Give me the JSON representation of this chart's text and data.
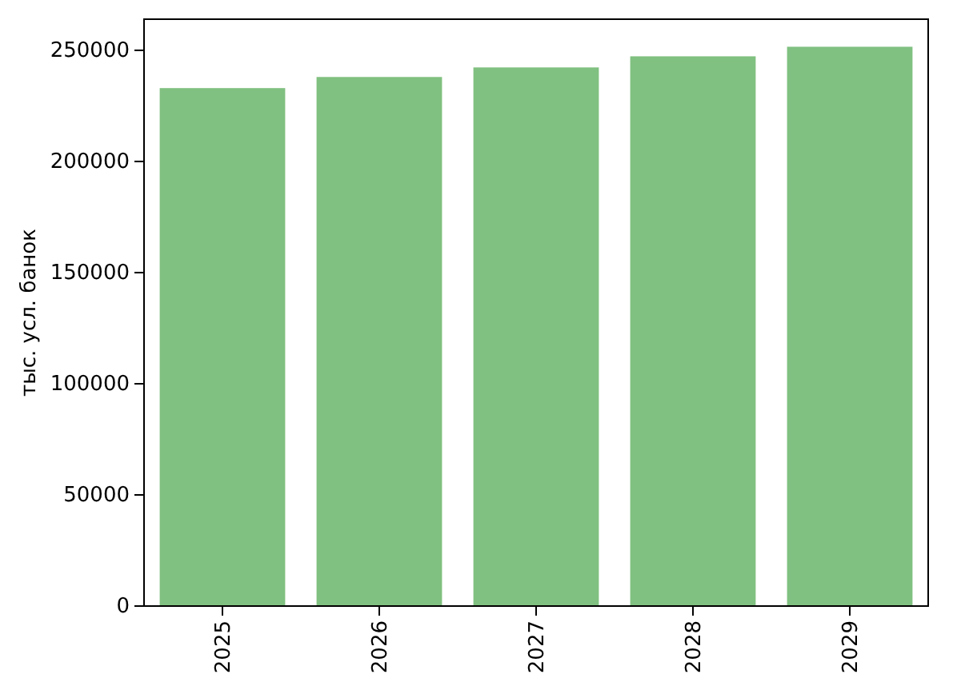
{
  "chart_data": {
    "type": "bar",
    "ylabel": "тыс. усл. банок",
    "categories": [
      "2025",
      "2026",
      "2027",
      "2028",
      "2029"
    ],
    "values": [
      233000,
      238000,
      242300,
      247300,
      251600
    ],
    "color": "#80c080",
    "ylim": [
      0,
      264000
    ],
    "yticks": [
      0,
      50000,
      100000,
      150000,
      200000,
      250000
    ],
    "grid": false
  }
}
